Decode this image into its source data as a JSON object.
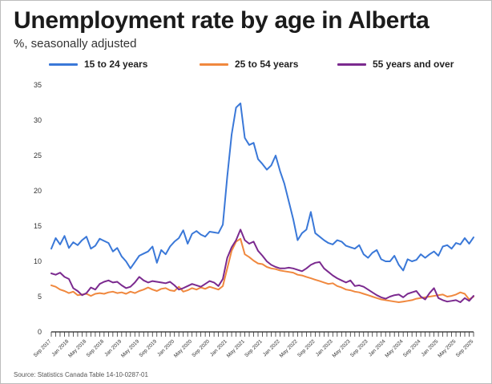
{
  "title": "Unemployment rate by age in Alberta",
  "subtitle": "%, seasonally adjusted",
  "source": "Source: Statistics Canada Table 14-10-0287-01",
  "chart_data": {
    "type": "line",
    "title": "Unemployment rate by age in Alberta",
    "subtitle": "%, seasonally adjusted",
    "xlabel": "",
    "ylabel": "",
    "ylim": [
      0,
      35
    ],
    "yticks": [
      0,
      5,
      10,
      15,
      20,
      25,
      30,
      35
    ],
    "grid": false,
    "legend_position": "top",
    "x_tick_labels": [
      "Sep 2017",
      "Jan 2018",
      "May 2018",
      "Sep 2018",
      "Jan 2019",
      "May 2019",
      "Sep 2019",
      "Jan 2020",
      "May 2020",
      "Sep 2020",
      "Jan 2021",
      "May 2021",
      "Sep 2021",
      "Jan 2022",
      "May 2022",
      "Sep 2022",
      "Jan 2023",
      "May 2023",
      "Sep 2023",
      "Jan 2024",
      "May 2024",
      "Sep 2024",
      "Jan 2025",
      "May 2025",
      "Sep 2025"
    ],
    "x_start": "Sep 2017",
    "x_end": "Sep 2025",
    "series": [
      {
        "name": "15 to 24 years",
        "color": "#3a78d8",
        "values": [
          11.8,
          13.3,
          12.4,
          13.6,
          11.9,
          12.7,
          12.3,
          13.0,
          13.5,
          11.8,
          12.2,
          13.2,
          12.9,
          12.6,
          11.4,
          11.9,
          10.7,
          10.0,
          9.0,
          9.9,
          10.8,
          11.1,
          11.4,
          12.1,
          9.8,
          11.6,
          11.0,
          12.1,
          12.8,
          13.3,
          14.4,
          12.5,
          13.9,
          14.3,
          13.8,
          13.5,
          14.2,
          14.1,
          14.0,
          15.2,
          22.0,
          28.0,
          31.8,
          32.4,
          27.5,
          26.5,
          26.8,
          24.5,
          23.8,
          23.0,
          23.6,
          25.0,
          22.8,
          21.0,
          18.5,
          16.0,
          13.0,
          14.0,
          14.5,
          17.0,
          14.0,
          13.5,
          13.0,
          12.6,
          12.4,
          13.0,
          12.8,
          12.2,
          12.0,
          11.8,
          12.3,
          11.0,
          10.5,
          11.2,
          11.6,
          10.3,
          10.0,
          10.0,
          10.8,
          9.5,
          8.7,
          10.3,
          10.0,
          10.2,
          11.0,
          10.5,
          11.0,
          11.4,
          10.8,
          12.1,
          12.3,
          11.8,
          12.6,
          12.4,
          13.3,
          12.5,
          13.4
        ]
      },
      {
        "name": "25 to 54 years",
        "color": "#f0883e",
        "values": [
          6.6,
          6.4,
          6.0,
          5.8,
          5.5,
          5.7,
          5.2,
          5.3,
          5.4,
          5.1,
          5.4,
          5.5,
          5.4,
          5.6,
          5.7,
          5.5,
          5.6,
          5.4,
          5.7,
          5.5,
          5.8,
          6.0,
          6.3,
          6.0,
          5.8,
          6.1,
          6.2,
          5.9,
          5.8,
          6.4,
          5.7,
          5.9,
          6.2,
          6.0,
          6.3,
          6.1,
          6.4,
          6.2,
          6.0,
          6.5,
          9.0,
          11.5,
          12.8,
          13.2,
          11.0,
          10.6,
          10.1,
          9.7,
          9.6,
          9.2,
          9.0,
          8.9,
          8.7,
          8.6,
          8.5,
          8.4,
          8.1,
          8.0,
          7.8,
          7.6,
          7.4,
          7.2,
          7.0,
          6.8,
          6.9,
          6.5,
          6.3,
          6.0,
          5.9,
          5.7,
          5.6,
          5.4,
          5.2,
          5.0,
          4.8,
          4.6,
          4.5,
          4.4,
          4.3,
          4.2,
          4.3,
          4.4,
          4.5,
          4.7,
          4.8,
          4.9,
          5.0,
          5.1,
          5.2,
          5.3,
          5.0,
          5.1,
          5.3,
          5.6,
          5.4,
          4.6,
          5.0
        ]
      },
      {
        "name": "55 years and over",
        "color": "#7b2a8f",
        "values": [
          8.3,
          8.1,
          8.4,
          7.8,
          7.5,
          6.2,
          5.8,
          5.2,
          5.5,
          6.3,
          6.0,
          6.8,
          7.1,
          7.3,
          7.0,
          7.1,
          6.6,
          6.2,
          6.4,
          7.0,
          7.8,
          7.3,
          7.0,
          7.2,
          7.1,
          7.0,
          6.9,
          7.1,
          6.6,
          6.0,
          6.2,
          6.5,
          6.8,
          6.6,
          6.4,
          6.8,
          7.2,
          7.0,
          6.5,
          7.5,
          10.5,
          12.0,
          13.0,
          14.5,
          13.0,
          12.5,
          12.8,
          11.5,
          10.8,
          10.0,
          9.5,
          9.2,
          9.0,
          9.0,
          9.1,
          9.0,
          8.8,
          8.6,
          9.0,
          9.5,
          9.8,
          9.9,
          9.0,
          8.5,
          8.0,
          7.6,
          7.3,
          7.0,
          7.3,
          6.5,
          6.6,
          6.4,
          6.0,
          5.6,
          5.2,
          4.9,
          4.7,
          5.0,
          5.2,
          5.3,
          4.9,
          5.4,
          5.6,
          5.8,
          5.0,
          4.6,
          5.5,
          6.2,
          4.8,
          4.5,
          4.3,
          4.4,
          4.5,
          4.2,
          4.8,
          4.4,
          5.1
        ]
      }
    ]
  }
}
